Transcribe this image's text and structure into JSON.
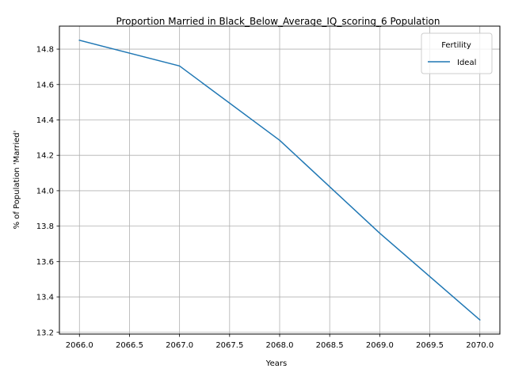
{
  "chart_data": {
    "type": "line",
    "title": "Proportion Married in Black_Below_Average_IQ_scoring_6 Population",
    "xlabel": "Years",
    "ylabel": "% of Population 'Married'",
    "xlim": [
      2065.8,
      2070.2
    ],
    "ylim": [
      13.19,
      14.93
    ],
    "x_ticks": [
      2066.0,
      2066.5,
      2067.0,
      2067.5,
      2068.0,
      2068.5,
      2069.0,
      2069.5,
      2070.0
    ],
    "x_tick_labels": [
      "2066.0",
      "2066.5",
      "2067.0",
      "2067.5",
      "2068.0",
      "2068.5",
      "2069.0",
      "2069.5",
      "2070.0"
    ],
    "y_ticks": [
      13.2,
      13.4,
      13.6,
      13.8,
      14.0,
      14.2,
      14.4,
      14.6,
      14.8
    ],
    "y_tick_labels": [
      "13.2",
      "13.4",
      "13.6",
      "13.8",
      "14.0",
      "14.2",
      "14.4",
      "14.6",
      "14.8"
    ],
    "grid": true,
    "legend": {
      "title": "Fertility",
      "placement": "top-right"
    },
    "series": [
      {
        "name": "Ideal",
        "color": "#1f77b4",
        "x": [
          2066,
          2067,
          2068,
          2069,
          2070
        ],
        "y": [
          14.85,
          14.705,
          14.285,
          13.76,
          13.27
        ]
      }
    ]
  }
}
